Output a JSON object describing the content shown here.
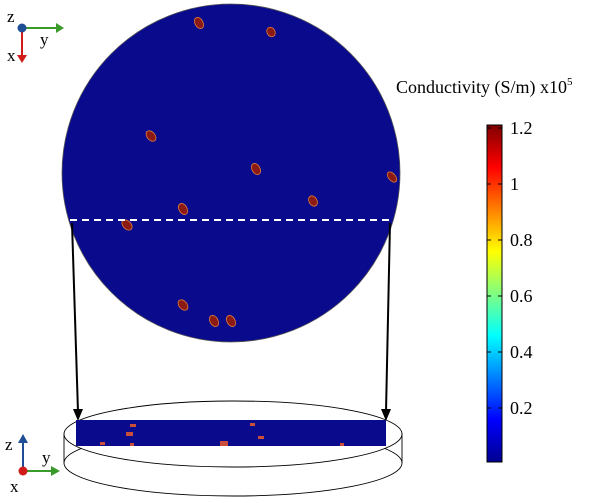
{
  "top_axes": {
    "z": "z",
    "x": "x",
    "y": "y"
  },
  "bottom_axes": {
    "z": "z",
    "x": "x",
    "y": "y"
  },
  "colorbar": {
    "title": "Conductivity (S/m) x10",
    "exponent": "5",
    "ticks": [
      "1.2",
      "1",
      "0.8",
      "0.6",
      "0.4",
      "0.2"
    ]
  },
  "colors": {
    "disk": "#0a0a8c",
    "inclusion": "#8b1a12",
    "arrow_z": "#1f4e96",
    "arrow_x": "#d11a1a",
    "arrow_y": "#3a9a2a"
  }
}
